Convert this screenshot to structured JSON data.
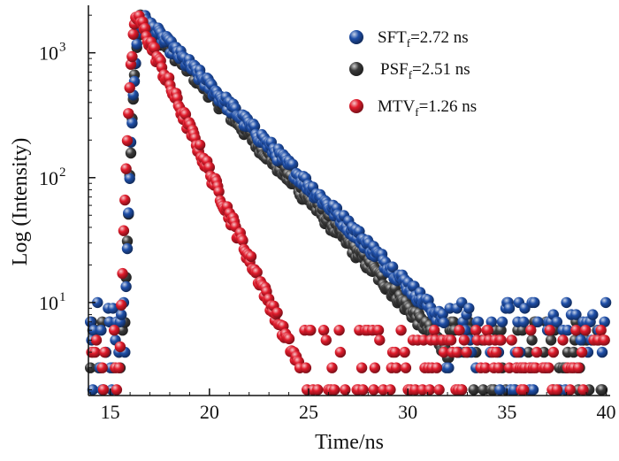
{
  "chart_data": {
    "type": "scatter",
    "title": "",
    "xlabel": "Time/ns",
    "ylabel": "Log (Intensity)",
    "xlim": [
      13.9,
      40.2
    ],
    "ylim": [
      1.8,
      2400
    ],
    "yscale": "log",
    "grid": false,
    "legend_position": "top-right",
    "x_ticks": [
      15,
      20,
      25,
      30,
      35,
      40
    ],
    "x_tick_labels": [
      "15",
      "20",
      "25",
      "30",
      "35",
      "40"
    ],
    "y_ticks": [
      10,
      100,
      1000
    ],
    "y_tick_labels": [
      {
        "base": "10",
        "exp": "1"
      },
      {
        "base": "10",
        "exp": "2"
      },
      {
        "base": "10",
        "exp": "3"
      }
    ],
    "series": [
      {
        "name": "SFT",
        "legend_main": "SFT",
        "legend_sub": "f",
        "legend_rest": "=2.72 ns",
        "color": "#1f4fa8",
        "peak_x": 16.6,
        "peak_y": 1900,
        "decay_ns": 2.72,
        "floor": 7
      },
      {
        "name": "PSF",
        "legend_main": "PSF",
        "legend_sub": "f",
        "legend_rest": "=2.51 ns",
        "color": "#3a3a3a",
        "peak_x": 16.6,
        "peak_y": 1900,
        "decay_ns": 2.51,
        "floor": 4
      },
      {
        "name": "MTV",
        "legend_main": "MTV",
        "legend_sub": "f",
        "legend_rest": "=1.26 ns",
        "color": "#e01b2b",
        "peak_x": 16.4,
        "peak_y": 1950,
        "decay_ns": 1.26,
        "floor": 3
      }
    ]
  }
}
